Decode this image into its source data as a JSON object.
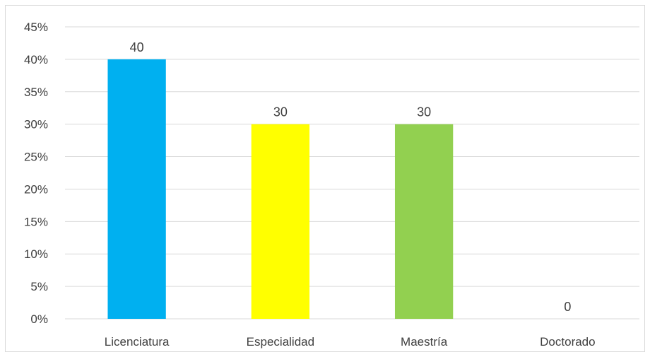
{
  "chart_data": {
    "type": "bar",
    "title": "",
    "xlabel": "",
    "ylabel": "",
    "categories": [
      "Licenciatura",
      "Especialidad",
      "Maestría",
      "Doctorado"
    ],
    "values": [
      40,
      30,
      30,
      0
    ],
    "data_labels": [
      "40",
      "30",
      "30",
      "0"
    ],
    "colors": [
      "#00b0f0",
      "#ffff00",
      "#92d050",
      "#7f7f7f"
    ],
    "ylim": [
      0,
      45
    ],
    "y_ticks": [
      0,
      5,
      10,
      15,
      20,
      25,
      30,
      35,
      40,
      45
    ],
    "y_tick_labels": [
      "0%",
      "5%",
      "10%",
      "15%",
      "20%",
      "25%",
      "30%",
      "35%",
      "40%",
      "45%"
    ],
    "grid": true,
    "legend": "none"
  }
}
